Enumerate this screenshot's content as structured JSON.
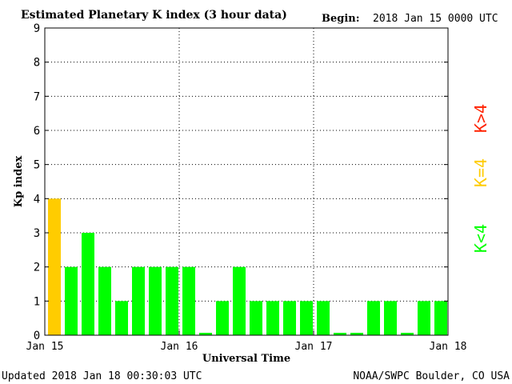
{
  "header": {
    "title": "Estimated Planetary K index (3 hour data)",
    "begin_label": "Begin:",
    "begin_value": "2018 Jan 15 0000 UTC"
  },
  "footer": {
    "updated": "Updated 2018 Jan 18 00:30:03 UTC",
    "credit": "NOAA/SWPC Boulder, CO USA"
  },
  "legend": {
    "items": [
      {
        "label": "K<4",
        "color": "#00ff00"
      },
      {
        "label": "K=4",
        "color": "#ffcc00"
      },
      {
        "label": "K>4",
        "color": "#ff2200"
      }
    ]
  },
  "chart_data": {
    "type": "bar",
    "xlabel": "Universal Time",
    "ylabel": "Kp index",
    "ylim": [
      0,
      9
    ],
    "yticks": [
      0,
      1,
      2,
      3,
      4,
      5,
      6,
      7,
      8,
      9
    ],
    "xticks": [
      "Jan 15",
      "Jan 16",
      "Jan 17",
      "Jan 18"
    ],
    "grid": true,
    "values": [
      4,
      2,
      3,
      2,
      1,
      2,
      2,
      2,
      2,
      0.07,
      1,
      2,
      1,
      1,
      1,
      1,
      1,
      0.07,
      0.07,
      1,
      1,
      0.07,
      1,
      1
    ],
    "colors": {
      "low": "#00ff00",
      "equal": "#ffcc00",
      "high": "#ff2200"
    }
  }
}
